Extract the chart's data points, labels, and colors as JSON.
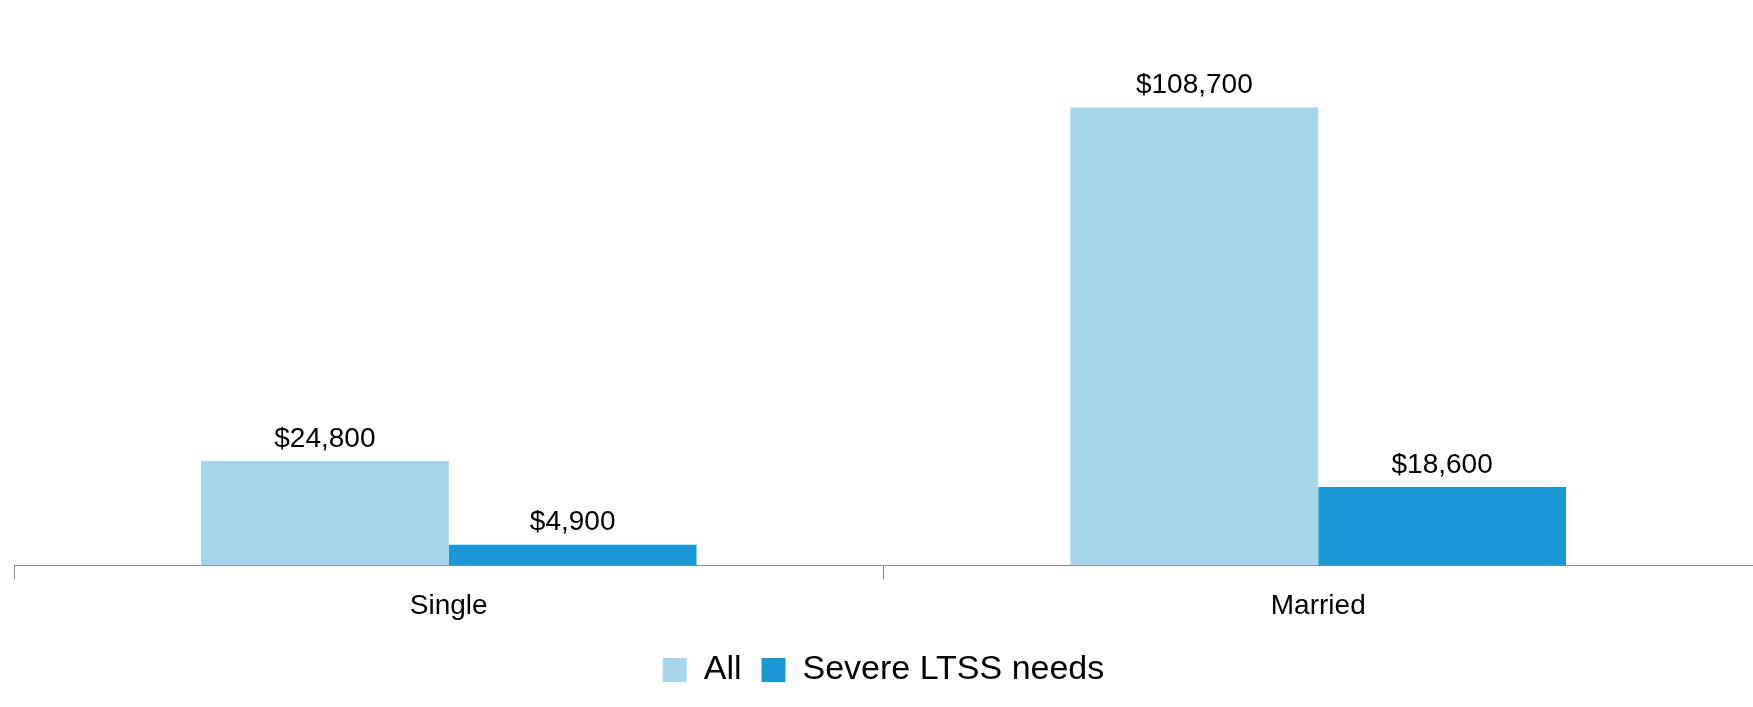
{
  "chart_data": {
    "type": "bar",
    "categories": [
      "Single",
      "Married"
    ],
    "series": [
      {
        "name": "All",
        "color": "#a5d5eb",
        "values": [
          24800,
          108700
        ],
        "value_labels": [
          "$24,800",
          "$108,700"
        ]
      },
      {
        "name": "Severe LTSS needs",
        "color": "#1a98d5",
        "values": [
          4900,
          18600
        ],
        "value_labels": [
          "$4,900",
          "$18,600"
        ]
      }
    ],
    "legend": "bottom",
    "tick_labels": "x"
  }
}
